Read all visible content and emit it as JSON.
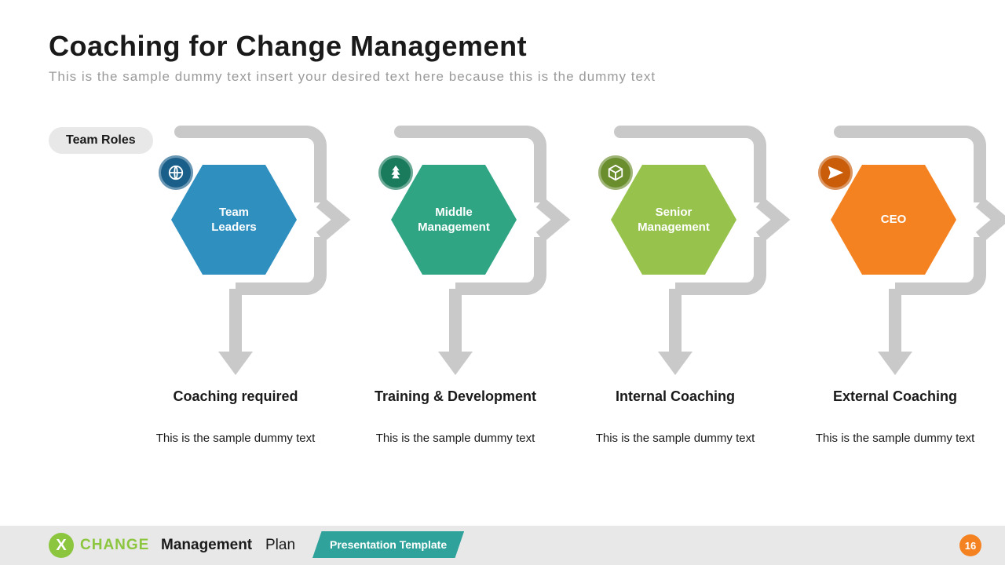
{
  "title": "Coaching for Change Management",
  "subtitle": "This is the sample dummy  text insert your desired text here because this is the dummy  text",
  "team_roles_label": "Team Roles",
  "connector_color": "#c9c9c9",
  "roles": [
    {
      "hex_label": "Team Leaders",
      "hex_color": "#2f8fbf",
      "icon_bg": "#1a5f8a",
      "icon": "globe",
      "coaching_title": "Coaching required",
      "coaching_desc": "This is the sample dummy text"
    },
    {
      "hex_label": "Middle Management",
      "hex_color": "#2fa583",
      "icon_bg": "#1a7a5c",
      "icon": "tree",
      "coaching_title": "Training & Development",
      "coaching_desc": "This is the sample dummy text"
    },
    {
      "hex_label": "Senior Management",
      "hex_color": "#97c24c",
      "icon_bg": "#6a8e2e",
      "icon": "box",
      "coaching_title": "Internal Coaching",
      "coaching_desc": "This is the sample dummy text"
    },
    {
      "hex_label": "CEO",
      "hex_color": "#f58220",
      "icon_bg": "#c95d0a",
      "icon": "plane",
      "coaching_title": "External Coaching",
      "coaching_desc": "This is the sample dummy text"
    }
  ],
  "footer": {
    "logo_letter": "X",
    "change": "CHANGE",
    "management": "Management",
    "plan": "Plan",
    "tag": "Presentation Template",
    "page": "16",
    "bar_bg": "#e8e8e8",
    "logo_bg": "#8cc63f",
    "tag_bg": "#2fa39b",
    "page_bg": "#f58220"
  },
  "title_fontsize": 36,
  "subtitle_fontsize": 17,
  "subtitle_color": "#9a9a9a",
  "background": "#ffffff"
}
